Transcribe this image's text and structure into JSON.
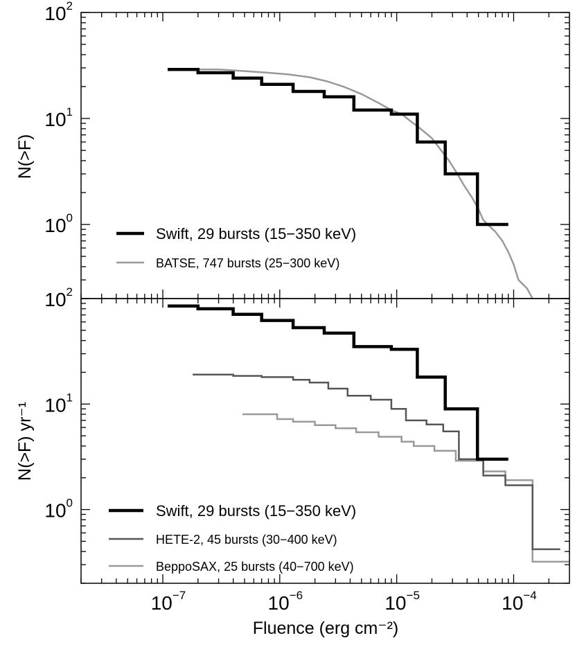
{
  "chart_data": [
    {
      "type": "line",
      "panel": "top",
      "title": "",
      "xlabel": "Fluence  (erg cm⁻²)",
      "ylabel": "N(>F)",
      "xscale": "log",
      "yscale": "log",
      "xlim": [
        2e-08,
        0.0003
      ],
      "ylim": [
        0.2,
        100
      ],
      "y_ticks": [
        {
          "base": "10",
          "exp": "2",
          "value": 100
        },
        {
          "base": "10",
          "exp": "1",
          "value": 10
        },
        {
          "base": "10",
          "exp": "0",
          "value": 1
        }
      ],
      "legend_position": "bottom-left",
      "series": [
        {
          "name": "Swift, 29 bursts  (15−350 keV)",
          "color": "#000000",
          "points": [
            [
              1.1e-07,
              29
            ],
            [
              2e-07,
              29
            ],
            [
              2e-07,
              27
            ],
            [
              4e-07,
              27
            ],
            [
              4e-07,
              24
            ],
            [
              7e-07,
              24
            ],
            [
              7e-07,
              21
            ],
            [
              1.3e-06,
              21
            ],
            [
              1.3e-06,
              18
            ],
            [
              2.4e-06,
              18
            ],
            [
              2.4e-06,
              16
            ],
            [
              4.3e-06,
              16
            ],
            [
              4.3e-06,
              12
            ],
            [
              9e-06,
              12
            ],
            [
              9e-06,
              11
            ],
            [
              1.5e-05,
              11
            ],
            [
              1.5e-05,
              6
            ],
            [
              2.6e-05,
              6
            ],
            [
              2.6e-05,
              3
            ],
            [
              4.9e-05,
              3
            ],
            [
              4.9e-05,
              1
            ],
            [
              9e-05,
              1
            ]
          ]
        },
        {
          "name": "BATSE, 747 bursts  (25−300 keV)",
          "color": "#999999",
          "points": [
            [
              1.1e-07,
              29
            ],
            [
              3e-07,
              29
            ],
            [
              5e-07,
              28
            ],
            [
              8e-07,
              27
            ],
            [
              1.2e-06,
              26
            ],
            [
              1.8e-06,
              24.5
            ],
            [
              2.5e-06,
              22.5
            ],
            [
              3.5e-06,
              20
            ],
            [
              5e-06,
              17
            ],
            [
              7e-06,
              14
            ],
            [
              9e-06,
              12
            ],
            [
              1.1e-05,
              11
            ],
            [
              1.3e-05,
              9.5
            ],
            [
              1.6e-05,
              8
            ],
            [
              2e-05,
              6.5
            ],
            [
              2.4e-05,
              5
            ],
            [
              2.8e-05,
              4
            ],
            [
              3.3e-05,
              3
            ],
            [
              3.8e-05,
              2.3
            ],
            [
              4.4e-05,
              1.8
            ],
            [
              5e-05,
              1.4
            ],
            [
              5.5e-05,
              1.1
            ],
            [
              6e-05,
              1.0
            ],
            [
              7e-05,
              0.85
            ],
            [
              8e-05,
              0.7
            ],
            [
              9e-05,
              0.55
            ],
            [
              0.0001,
              0.42
            ],
            [
              0.00011,
              0.3
            ],
            [
              0.00013,
              0.25
            ],
            [
              0.000145,
              0.2
            ]
          ]
        }
      ]
    },
    {
      "type": "line",
      "panel": "bottom",
      "title": "",
      "xlabel": "Fluence  (erg cm⁻²)",
      "ylabel": "N(>F) yr⁻¹",
      "xscale": "log",
      "yscale": "log",
      "xlim": [
        2e-08,
        0.0003
      ],
      "ylim": [
        0.2,
        100
      ],
      "y_ticks": [
        {
          "base": "10",
          "exp": "2",
          "value": 100
        },
        {
          "base": "10",
          "exp": "1",
          "value": 10
        },
        {
          "base": "10",
          "exp": "0",
          "value": 1
        }
      ],
      "x_ticks": [
        {
          "base": "10",
          "exp": "−7",
          "value": 1e-07
        },
        {
          "base": "10",
          "exp": "−6",
          "value": 1e-06
        },
        {
          "base": "10",
          "exp": "−5",
          "value": 1e-05
        },
        {
          "base": "10",
          "exp": "−4",
          "value": 0.0001
        }
      ],
      "legend_position": "bottom-left",
      "series": [
        {
          "name": "Swift, 29 bursts  (15−350 keV)",
          "color": "#000000",
          "points": [
            [
              1.1e-07,
              85
            ],
            [
              2e-07,
              85
            ],
            [
              2e-07,
              80
            ],
            [
              4e-07,
              80
            ],
            [
              4e-07,
              71
            ],
            [
              7e-07,
              71
            ],
            [
              7e-07,
              62
            ],
            [
              1.3e-06,
              62
            ],
            [
              1.3e-06,
              53
            ],
            [
              2.4e-06,
              53
            ],
            [
              2.4e-06,
              47
            ],
            [
              4.3e-06,
              47
            ],
            [
              4.3e-06,
              35
            ],
            [
              9e-06,
              35
            ],
            [
              9e-06,
              33
            ],
            [
              1.5e-05,
              33
            ],
            [
              1.5e-05,
              18
            ],
            [
              2.6e-05,
              18
            ],
            [
              2.6e-05,
              9
            ],
            [
              4.9e-05,
              9
            ],
            [
              4.9e-05,
              3
            ],
            [
              9e-05,
              3
            ]
          ]
        },
        {
          "name": "HETE-2, 45 bursts  (30−400 keV)",
          "color": "#555555",
          "points": [
            [
              1.8e-07,
              19
            ],
            [
              4e-07,
              19
            ],
            [
              4e-07,
              18.5
            ],
            [
              7e-07,
              18.5
            ],
            [
              7e-07,
              18
            ],
            [
              1.3e-06,
              18
            ],
            [
              1.3e-06,
              17
            ],
            [
              1.8e-06,
              17
            ],
            [
              1.8e-06,
              16
            ],
            [
              2.6e-06,
              16
            ],
            [
              2.6e-06,
              14
            ],
            [
              3.8e-06,
              14
            ],
            [
              3.8e-06,
              12
            ],
            [
              6e-06,
              12
            ],
            [
              6e-06,
              11
            ],
            [
              9e-06,
              11
            ],
            [
              9e-06,
              9
            ],
            [
              1.2e-05,
              9
            ],
            [
              1.2e-05,
              7
            ],
            [
              1.8e-05,
              7
            ],
            [
              1.8e-05,
              6.4
            ],
            [
              2.5e-05,
              6.4
            ],
            [
              2.5e-05,
              5.5
            ],
            [
              3.4e-05,
              5.5
            ],
            [
              3.4e-05,
              3
            ],
            [
              5.5e-05,
              3
            ],
            [
              5.5e-05,
              2.1
            ],
            [
              8.5e-05,
              2.1
            ],
            [
              8.5e-05,
              1.7
            ],
            [
              0.000145,
              1.7
            ],
            [
              0.000145,
              0.42
            ],
            [
              0.00025,
              0.42
            ]
          ]
        },
        {
          "name": "BeppoSAX, 25 bursts  (40−700 keV)",
          "color": "#999999",
          "points": [
            [
              4.8e-07,
              8
            ],
            [
              9.5e-07,
              8
            ],
            [
              9.5e-07,
              7.2
            ],
            [
              1.3e-06,
              7.2
            ],
            [
              1.3e-06,
              6.8
            ],
            [
              2e-06,
              6.8
            ],
            [
              2e-06,
              6.3
            ],
            [
              3e-06,
              6.3
            ],
            [
              3e-06,
              5.9
            ],
            [
              4.5e-06,
              5.9
            ],
            [
              4.5e-06,
              5.4
            ],
            [
              7e-06,
              5.4
            ],
            [
              7e-06,
              4.9
            ],
            [
              1.1e-05,
              4.9
            ],
            [
              1.1e-05,
              4.4
            ],
            [
              1.4e-05,
              4.4
            ],
            [
              1.4e-05,
              4.0
            ],
            [
              2.1e-05,
              4.0
            ],
            [
              2.1e-05,
              3.6
            ],
            [
              3.2e-05,
              3.6
            ],
            [
              3.2e-05,
              2.9
            ],
            [
              5.5e-05,
              2.9
            ],
            [
              5.5e-05,
              2.3
            ],
            [
              8.5e-05,
              2.3
            ],
            [
              8.5e-05,
              1.9
            ],
            [
              0.000145,
              1.9
            ],
            [
              0.000145,
              0.32
            ],
            [
              0.0003,
              0.32
            ]
          ]
        }
      ]
    }
  ]
}
